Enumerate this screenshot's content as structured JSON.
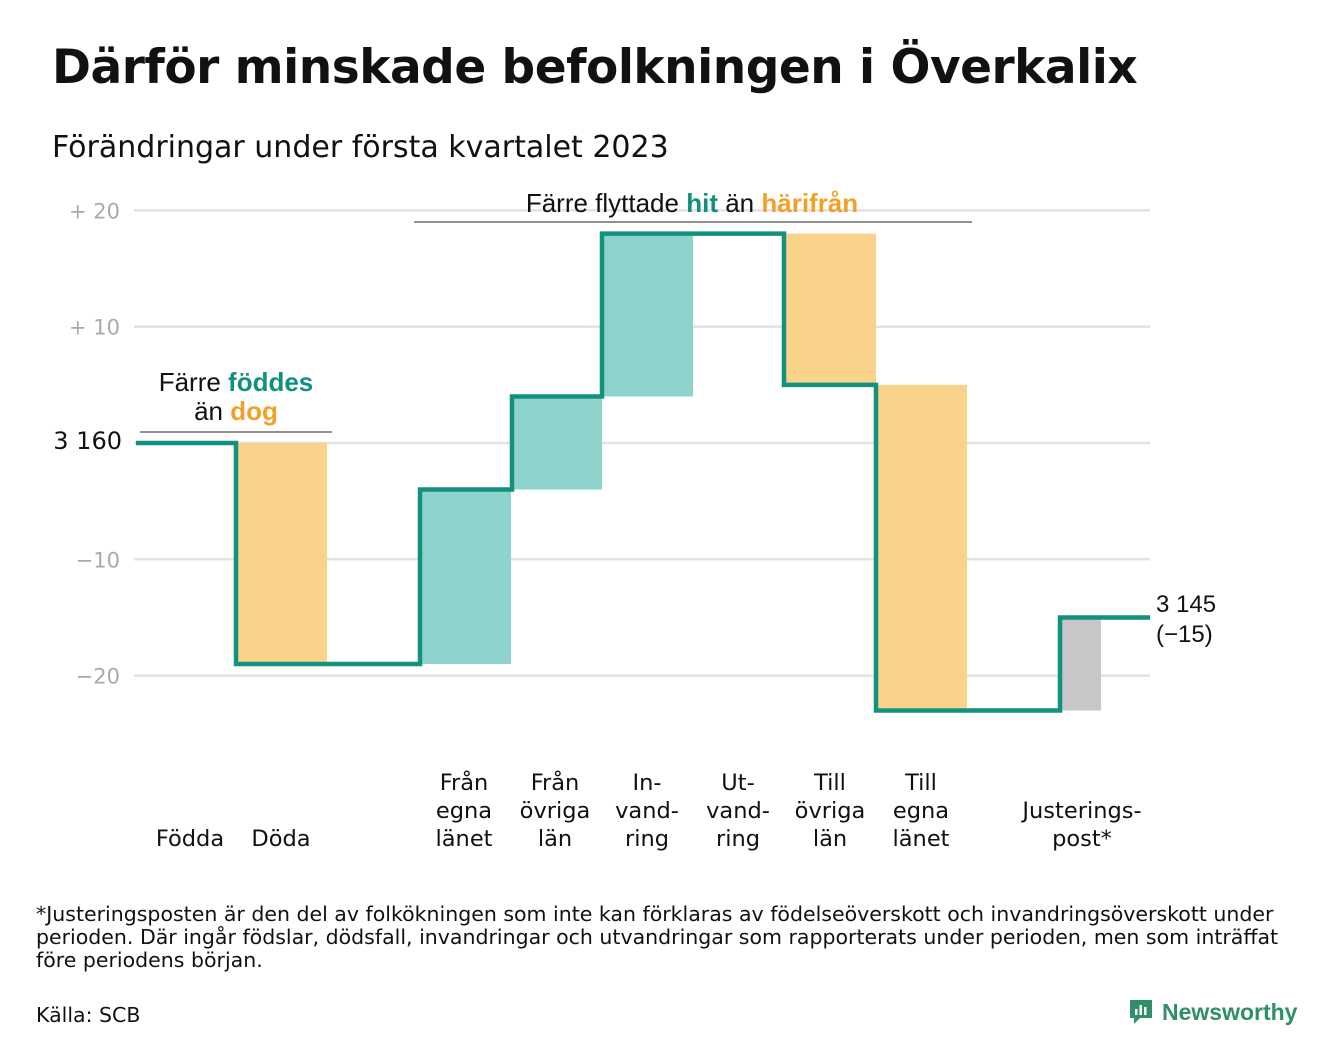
{
  "title": "Därför minskade befolkningen i Överkalix",
  "subtitle": "Förändringar under första kvartalet 2023",
  "colors": {
    "line": "#13917f",
    "teal": "#8ed4cc",
    "orange": "#fad38a",
    "gray": "#c7c7c7",
    "teal_text": "#12907f",
    "orange_text": "#f1a02a",
    "grid": "#e2e2e2"
  },
  "chart_data": {
    "type": "waterfall",
    "start_value": 3160,
    "start_label": "3 160",
    "end_label_line1": "3 145",
    "end_label_line2": "(−15)",
    "y_ticks": [
      {
        "value": 20,
        "label": "+ 20"
      },
      {
        "value": 10,
        "label": "+ 10"
      },
      {
        "value": 0,
        "label": ""
      },
      {
        "value": -10,
        "label": "−10"
      },
      {
        "value": -20,
        "label": "−20"
      }
    ],
    "ylim": [
      -20,
      20
    ],
    "steps": [
      {
        "lines": [
          "Födda"
        ],
        "value": 0,
        "color": "teal"
      },
      {
        "lines": [
          "Döda"
        ],
        "value": -19,
        "color": "orange"
      },
      {
        "lines": [
          "Från",
          "egna",
          "länet"
        ],
        "value": 15,
        "color": "teal"
      },
      {
        "lines": [
          "Från",
          "övriga",
          "län"
        ],
        "value": 8,
        "color": "teal"
      },
      {
        "lines": [
          "In-",
          "vand-",
          "ring"
        ],
        "value": 14,
        "color": "teal"
      },
      {
        "lines": [
          "Ut-",
          "vand-",
          "ring"
        ],
        "value": 0,
        "color": "orange"
      },
      {
        "lines": [
          "Till",
          "övriga",
          "län"
        ],
        "value": -13,
        "color": "orange"
      },
      {
        "lines": [
          "Till",
          "egna",
          "länet"
        ],
        "value": -28,
        "color": "orange"
      },
      {
        "lines": [
          "Justerings-",
          "post*"
        ],
        "value": 8,
        "color": "gray"
      }
    ],
    "annotations": [
      {
        "id": "births",
        "parts": [
          [
            "Färre ",
            "plain"
          ],
          [
            "föddes",
            "teal"
          ]
        ],
        "parts2": [
          [
            "än ",
            "plain"
          ],
          [
            "dog",
            "orange"
          ]
        ]
      },
      {
        "id": "moves",
        "parts": [
          [
            "Färre flyttade ",
            "plain"
          ],
          [
            "hit",
            "teal"
          ],
          [
            " än ",
            "plain"
          ],
          [
            "härifrån",
            "orange"
          ]
        ]
      }
    ]
  },
  "footnote": "*Justeringsposten är den del av folkökningen som inte kan förklaras av födelseöverskott och invandringsöverskott under perioden. Där ingår födslar, dödsfall, invandringar och utvandringar som rapporterats under perioden, men som inträffat före periodens början.",
  "source": "Källa: SCB",
  "logo_text": "Newsworthy"
}
